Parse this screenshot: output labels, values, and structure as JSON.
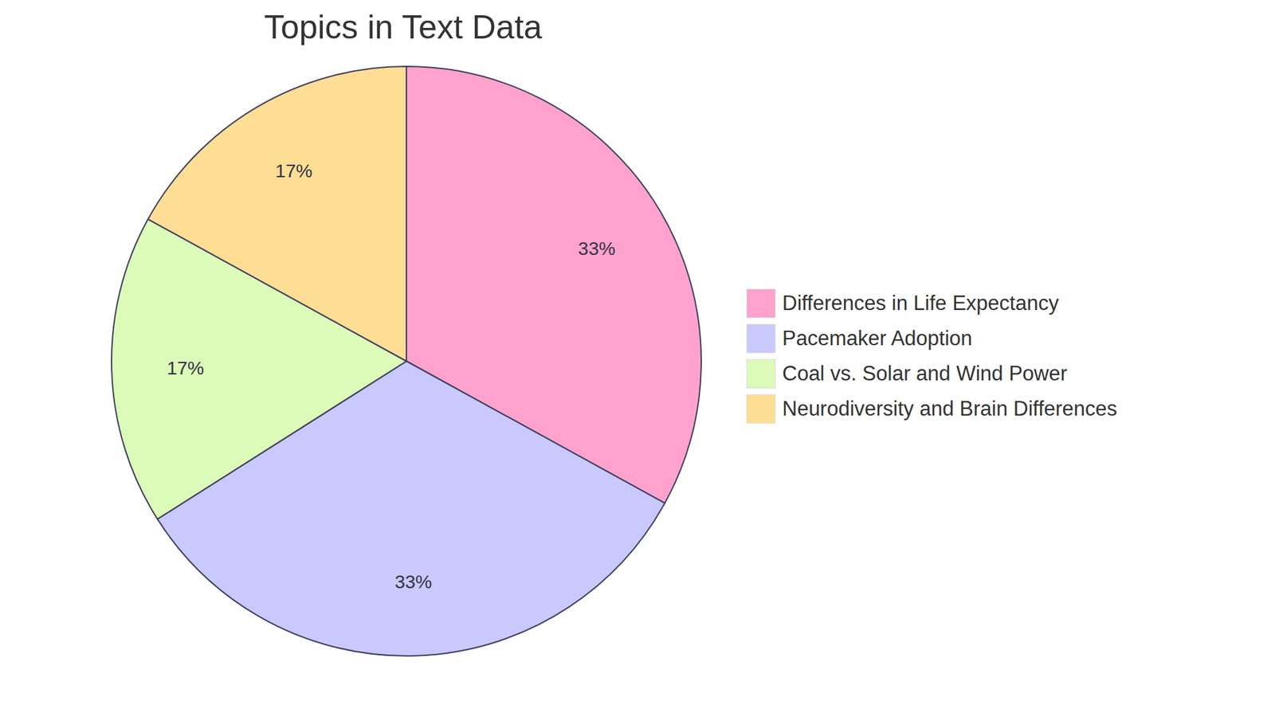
{
  "chart_data": {
    "type": "pie",
    "title": "Topics in Text Data",
    "categories": [
      "Differences in Life Expectancy",
      "Pacemaker Adoption",
      "Coal vs. Solar and Wind Power",
      "Neurodiversity and Brain Differences"
    ],
    "values": [
      33,
      33,
      17,
      17
    ],
    "value_labels": [
      "33%",
      "33%",
      "17%",
      "17%"
    ],
    "colors": [
      "#ffa3ce",
      "#c9c9fd",
      "#dcfab8",
      "#fede95"
    ],
    "data_labels": true,
    "legend": "right"
  }
}
